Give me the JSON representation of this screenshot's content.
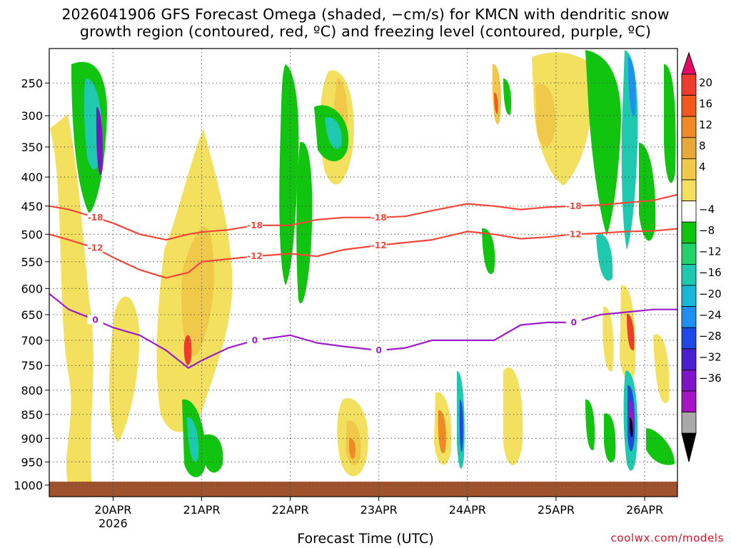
{
  "chart_data": {
    "type": "heatmap",
    "title_line1": "2026041906 GFS Forecast Omega (shaded, −cm/s) for KMCN with dendritic snow",
    "title_line2": "growth region (contoured, red, ºC) and freezing level (contoured, purple, ºC)",
    "xlabel": "Forecast Time (UTC)",
    "credit": "coolwx.com/models",
    "x_ticks": [
      "20APR",
      "21APR",
      "22APR",
      "23APR",
      "24APR",
      "25APR",
      "26APR"
    ],
    "x_year_label": "2026",
    "x_day_values": [
      1,
      2,
      3,
      4,
      5,
      6,
      7
    ],
    "x_range_days": [
      0.28,
      7.37
    ],
    "y_ticks": [
      250,
      300,
      350,
      400,
      450,
      500,
      550,
      600,
      650,
      700,
      750,
      800,
      850,
      900,
      950,
      1000
    ],
    "y_range_hpa": [
      200,
      1025
    ],
    "grid": true,
    "colorbar": {
      "position": "right",
      "tick_labels": [
        "20",
        "16",
        "12",
        "8",
        "4",
        "−4",
        "−8",
        "−12",
        "−16",
        "−20",
        "−24",
        "−28",
        "−32",
        "−36"
      ],
      "colors": [
        "#e60a6b",
        "#ef3b2c",
        "#f15a1c",
        "#f08a24",
        "#e9a93a",
        "#f0c94a",
        "#f2e05e",
        "#ffffff",
        "#10c410",
        "#22d36a",
        "#1ec9b0",
        "#19b7d8",
        "#1f8ff0",
        "#1f49e6",
        "#4a1fd0",
        "#7d14c8",
        "#a514c4",
        "#a9a9a9",
        "#000000"
      ]
    },
    "series": [
      {
        "name": "-18",
        "color": "#f4473a",
        "x_days": [
          0.28,
          0.5,
          0.8,
          1.0,
          1.3,
          1.6,
          1.85,
          2.0,
          2.3,
          2.6,
          3.0,
          3.3,
          3.6,
          4.0,
          4.3,
          4.6,
          5.0,
          5.3,
          5.6,
          5.9,
          6.2,
          6.5,
          6.8,
          7.1,
          7.37
        ],
        "pressure_hpa": [
          450,
          456,
          470,
          480,
          500,
          510,
          500,
          496,
          492,
          484,
          484,
          474,
          470,
          470,
          468,
          458,
          446,
          450,
          456,
          452,
          450,
          448,
          444,
          440,
          430
        ]
      },
      {
        "name": "-12",
        "color": "#f4473a",
        "x_days": [
          0.28,
          0.5,
          0.8,
          1.0,
          1.3,
          1.6,
          1.85,
          2.0,
          2.3,
          2.6,
          3.0,
          3.3,
          3.6,
          4.0,
          4.3,
          4.6,
          5.0,
          5.3,
          5.6,
          5.9,
          6.2,
          6.5,
          6.8,
          7.1,
          7.37
        ],
        "pressure_hpa": [
          500,
          510,
          525,
          542,
          565,
          580,
          570,
          550,
          545,
          540,
          535,
          540,
          528,
          520,
          515,
          510,
          495,
          500,
          508,
          505,
          500,
          498,
          495,
          494,
          490
        ]
      },
      {
        "name": "0",
        "color": "#9b1ec8",
        "x_days": [
          0.28,
          0.5,
          0.8,
          1.0,
          1.3,
          1.6,
          1.85,
          2.0,
          2.3,
          2.6,
          3.0,
          3.3,
          3.6,
          4.0,
          4.3,
          4.6,
          5.0,
          5.3,
          5.6,
          5.9,
          6.2,
          6.5,
          6.8,
          7.1,
          7.37
        ],
        "pressure_hpa": [
          610,
          640,
          660,
          675,
          690,
          720,
          755,
          740,
          715,
          700,
          690,
          705,
          712,
          720,
          715,
          700,
          700,
          700,
          670,
          665,
          665,
          650,
          645,
          640,
          640
        ]
      }
    ]
  }
}
